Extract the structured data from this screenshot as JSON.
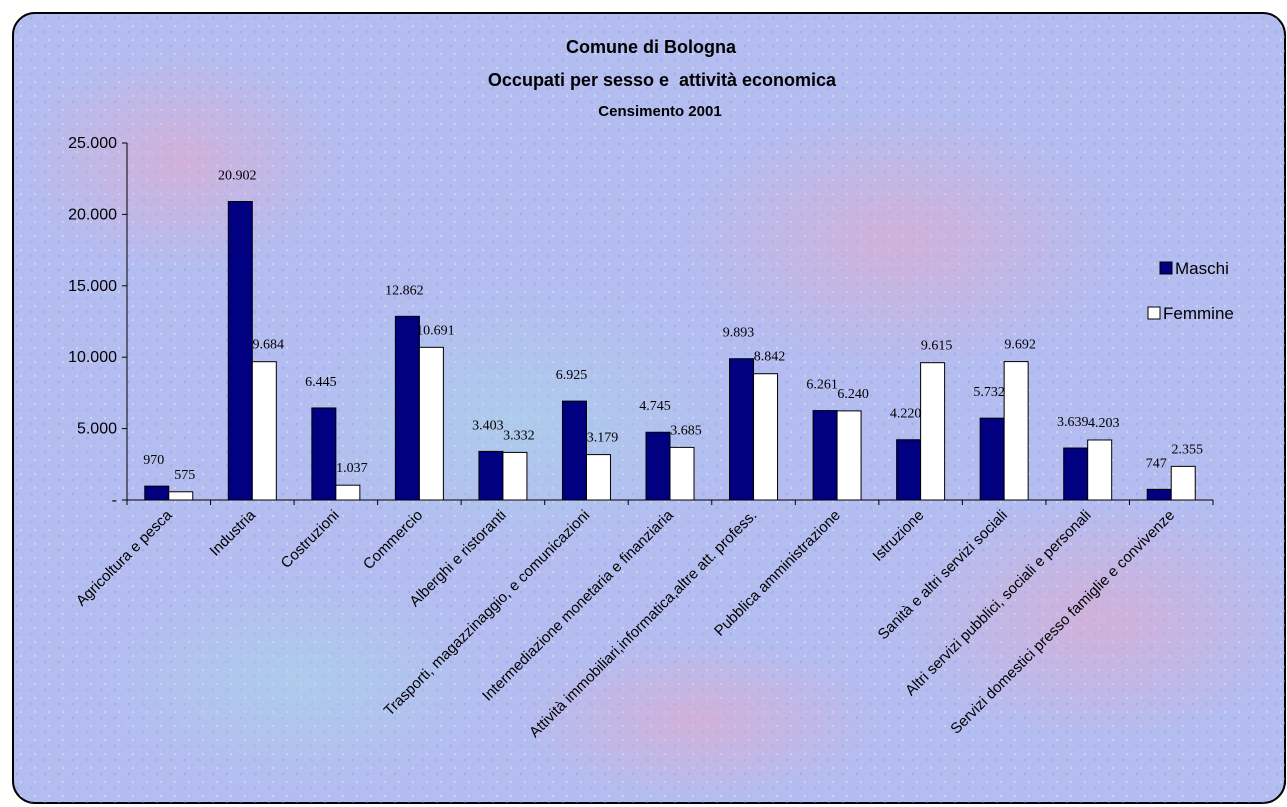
{
  "chart_data": {
    "type": "bar",
    "title": "Comune di Bologna",
    "subtitle": "Occupati per sesso e  attività economica",
    "subtitle2": "Censimento 2001",
    "xlabel": "",
    "ylabel": "",
    "ylim": [
      0,
      25000
    ],
    "ytick_labels": [
      "-",
      "5.000",
      "10.000",
      "15.000",
      "20.000",
      "25.000"
    ],
    "grid": false,
    "legend_position": "right",
    "categories": [
      "Agricoltura e pesca",
      "Industria",
      "Costruzioni",
      "Commercio",
      "Alberghi e ristoranti",
      "Trasporti, magazzinaggio, e comunicazioni",
      "Intermediazione monetaria e finanziaria",
      "Attività immobiliari,informatica,altre att. profess.",
      "Pubblica amministrazione",
      "Istruzione",
      "Sanità e altri servizi sociali",
      "Altri servizi pubblici, sociali e personali",
      "Servizi domestici presso famiglie e convivenze"
    ],
    "series": [
      {
        "name": "Maschi",
        "color": "#000080",
        "values": [
          970,
          20902,
          6445,
          12862,
          3403,
          6925,
          4745,
          9893,
          6261,
          4220,
          5732,
          3639,
          747
        ],
        "labels": [
          "970",
          "20.902",
          "6.445",
          "12.862",
          "3.403",
          "6.925",
          "4.745",
          "9.893",
          "6.261",
          "4.220",
          "5.732",
          "3.639",
          "747"
        ]
      },
      {
        "name": "Femmine",
        "color": "#ffffff",
        "values": [
          575,
          9684,
          1037,
          10691,
          3332,
          3179,
          3685,
          8842,
          6240,
          9615,
          9692,
          4203,
          2355
        ],
        "labels": [
          "575",
          "9.684",
          "1.037",
          "10.691",
          "3.332",
          "3.179",
          "3.685",
          "8.842",
          "6.240",
          "9.615",
          "9.692",
          "4.203",
          "2.355"
        ]
      }
    ]
  }
}
